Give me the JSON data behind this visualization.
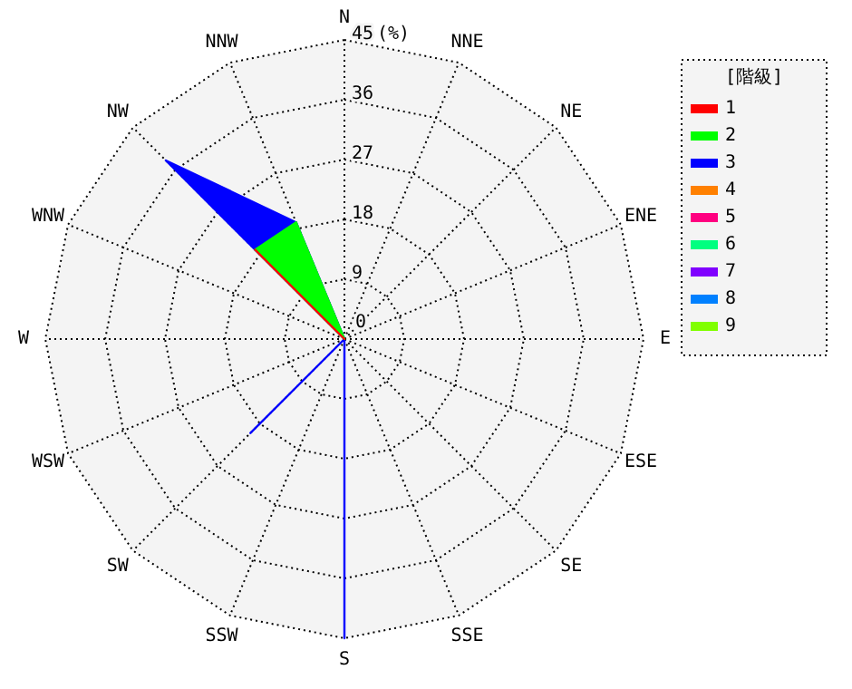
{
  "chart_data": {
    "type": "radar",
    "ylabel": "(%)",
    "legend_title": "[階級]",
    "legend": "right",
    "grid": true,
    "ylim": [
      0,
      45
    ],
    "yticks": [
      0,
      9,
      18,
      27,
      36,
      45
    ],
    "categories": [
      "N",
      "NNE",
      "NE",
      "ENE",
      "E",
      "ESE",
      "SE",
      "SSE",
      "S",
      "SSW",
      "SW",
      "WSW",
      "W",
      "WNW",
      "NW",
      "NNW"
    ],
    "series": [
      {
        "name": "1",
        "color": "#ff0000",
        "values": [
          0,
          0,
          0,
          0,
          0,
          0,
          0,
          0,
          0,
          0,
          0,
          0,
          0,
          0,
          19,
          0
        ]
      },
      {
        "name": "2",
        "color": "#00ff00",
        "values": [
          0,
          0,
          0,
          0,
          0,
          0,
          0,
          0,
          0,
          0,
          0,
          0,
          0,
          0,
          19,
          19
        ]
      },
      {
        "name": "3",
        "color": "#0000ff",
        "values": [
          0,
          0,
          0,
          0,
          0,
          0,
          0,
          0,
          45,
          0,
          20,
          0,
          0,
          0,
          38,
          19
        ]
      },
      {
        "name": "4",
        "color": "#ff8000",
        "values": [
          null,
          null,
          null,
          null,
          null,
          null,
          null,
          null,
          null,
          null,
          null,
          null,
          null,
          null,
          null,
          null
        ]
      },
      {
        "name": "5",
        "color": "#ff0080",
        "values": [
          null,
          null,
          null,
          null,
          null,
          null,
          null,
          null,
          null,
          null,
          null,
          null,
          null,
          null,
          null,
          null
        ]
      },
      {
        "name": "6",
        "color": "#00ff80",
        "values": [
          null,
          null,
          null,
          null,
          null,
          null,
          null,
          null,
          null,
          null,
          null,
          null,
          null,
          null,
          null,
          null
        ]
      },
      {
        "name": "7",
        "color": "#8000ff",
        "values": [
          null,
          null,
          null,
          null,
          null,
          null,
          null,
          null,
          null,
          null,
          null,
          null,
          null,
          null,
          null,
          null
        ]
      },
      {
        "name": "8",
        "color": "#0080ff",
        "values": [
          null,
          null,
          null,
          null,
          null,
          null,
          null,
          null,
          null,
          null,
          null,
          null,
          null,
          null,
          null,
          null
        ]
      },
      {
        "name": "9",
        "color": "#80ff00",
        "values": [
          null,
          null,
          null,
          null,
          null,
          null,
          null,
          null,
          null,
          null,
          null,
          null,
          null,
          null,
          null,
          null
        ]
      }
    ]
  }
}
